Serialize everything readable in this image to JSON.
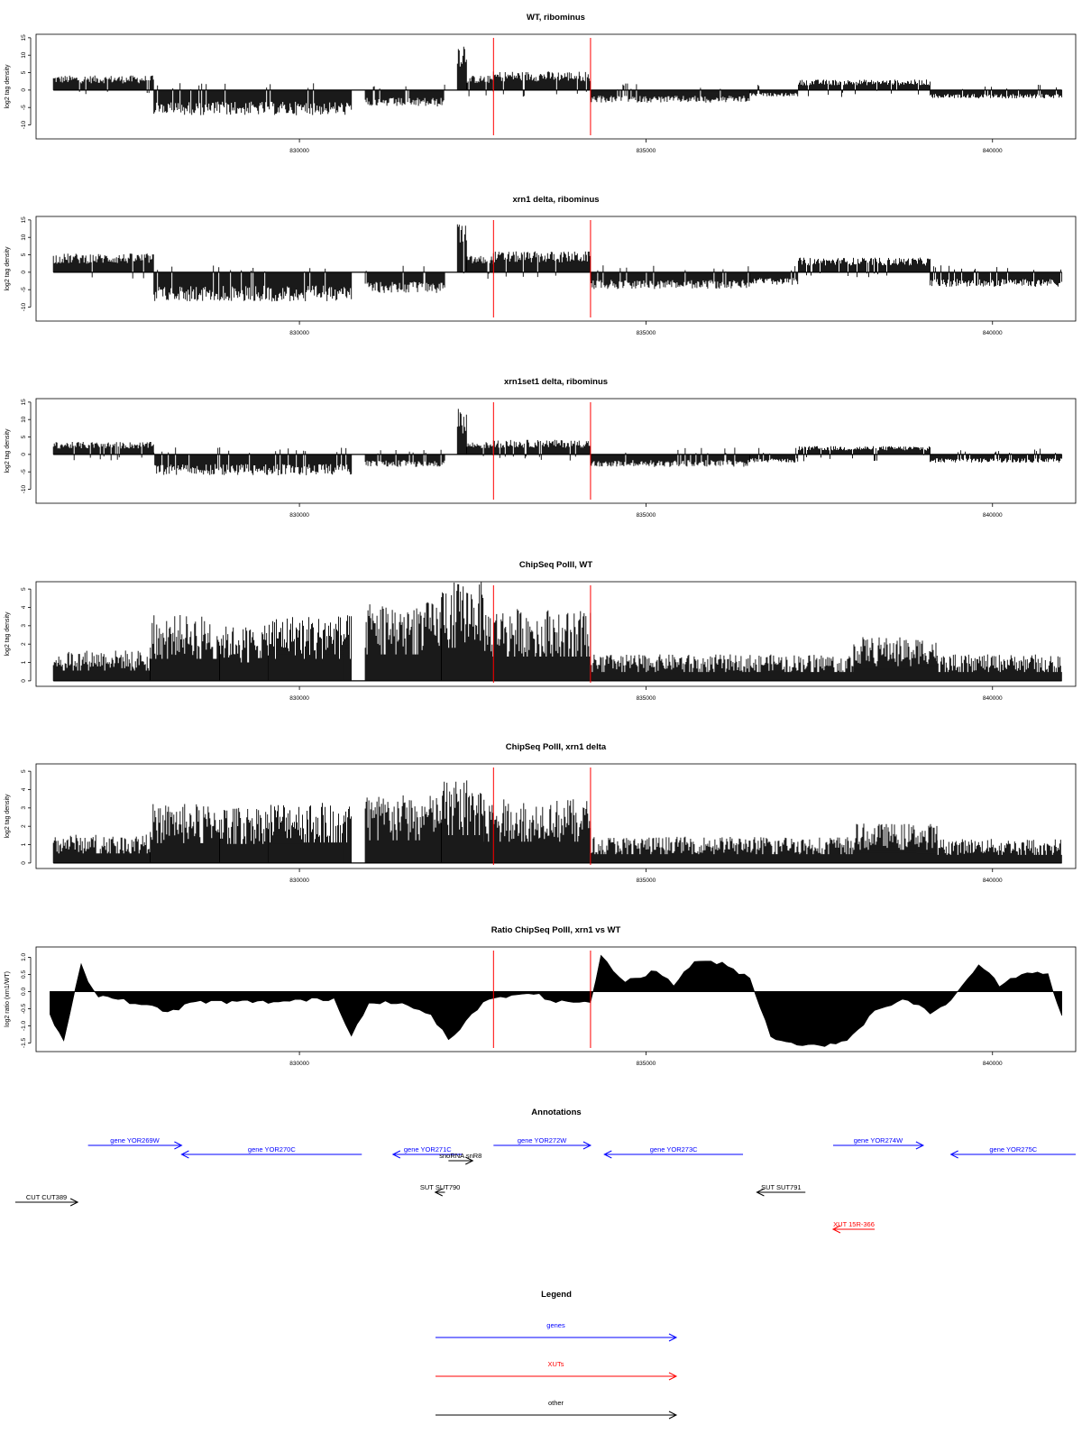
{
  "chart_data": [
    {
      "type": "bar",
      "title": "WT, ribominus",
      "ylabel": "log2 tag density",
      "xlim": [
        826200,
        841200
      ],
      "ylim": [
        -14,
        16
      ],
      "yticks": [
        "-10",
        "-5",
        "0",
        "5",
        "10",
        "15"
      ],
      "yticks_values": [
        -10,
        -5,
        0,
        5,
        10,
        15
      ],
      "xticks": [
        "830000",
        "835000",
        "840000"
      ],
      "xticks_values": [
        830000,
        835000,
        840000
      ],
      "markers": [
        832800,
        834200
      ],
      "segments": [
        {
          "start": 826450,
          "end": 827900,
          "level": 3.5
        },
        {
          "start": 827900,
          "end": 830750,
          "level": -6
        },
        {
          "start": 830950,
          "end": 832100,
          "level": -4
        },
        {
          "start": 832280,
          "end": 832420,
          "level": 12
        },
        {
          "start": 832420,
          "end": 832800,
          "level": 3.5
        },
        {
          "start": 832800,
          "end": 834200,
          "level": 4.5
        },
        {
          "start": 834200,
          "end": 836500,
          "level": -3
        },
        {
          "start": 836500,
          "end": 837200,
          "level": -1.5
        },
        {
          "start": 837200,
          "end": 839100,
          "level": 2.5
        },
        {
          "start": 839100,
          "end": 841000,
          "level": -2
        }
      ]
    },
    {
      "type": "bar",
      "title": "xrn1 delta, ribominus",
      "ylabel": "log2 tag density",
      "xlim": [
        826200,
        841200
      ],
      "ylim": [
        -14,
        16
      ],
      "yticks": [
        "-10",
        "-5",
        "0",
        "5",
        "10",
        "15"
      ],
      "yticks_values": [
        -10,
        -5,
        0,
        5,
        10,
        15
      ],
      "xticks": [
        "830000",
        "835000",
        "840000"
      ],
      "xticks_values": [
        830000,
        835000,
        840000
      ],
      "markers": [
        832800,
        834200
      ],
      "segments": [
        {
          "start": 826450,
          "end": 827900,
          "level": 4.5
        },
        {
          "start": 827900,
          "end": 830750,
          "level": -7
        },
        {
          "start": 830950,
          "end": 832100,
          "level": -5
        },
        {
          "start": 832280,
          "end": 832420,
          "level": 12
        },
        {
          "start": 832420,
          "end": 832800,
          "level": 4
        },
        {
          "start": 832800,
          "end": 834200,
          "level": 5
        },
        {
          "start": 834200,
          "end": 836500,
          "level": -4
        },
        {
          "start": 836500,
          "end": 837200,
          "level": -3
        },
        {
          "start": 837200,
          "end": 839100,
          "level": 3.5
        },
        {
          "start": 839100,
          "end": 841000,
          "level": -3.5
        }
      ]
    },
    {
      "type": "bar",
      "title": "xrn1set1 delta, ribominus",
      "ylabel": "log2 tag density",
      "xlim": [
        826200,
        841200
      ],
      "ylim": [
        -14,
        16
      ],
      "yticks": [
        "-10",
        "-5",
        "0",
        "5",
        "10",
        "15"
      ],
      "yticks_values": [
        -10,
        -5,
        0,
        5,
        10,
        15
      ],
      "xticks": [
        "830000",
        "835000",
        "840000"
      ],
      "xticks_values": [
        830000,
        835000,
        840000
      ],
      "markers": [
        832800,
        834200
      ],
      "segments": [
        {
          "start": 826450,
          "end": 827900,
          "level": 3
        },
        {
          "start": 827900,
          "end": 830750,
          "level": -5
        },
        {
          "start": 830950,
          "end": 832100,
          "level": -3
        },
        {
          "start": 832280,
          "end": 832420,
          "level": 11
        },
        {
          "start": 832420,
          "end": 832800,
          "level": 3
        },
        {
          "start": 832800,
          "end": 834200,
          "level": 3.5
        },
        {
          "start": 834200,
          "end": 836500,
          "level": -3
        },
        {
          "start": 836500,
          "end": 837200,
          "level": -2
        },
        {
          "start": 837200,
          "end": 839100,
          "level": 2
        },
        {
          "start": 839100,
          "end": 841000,
          "level": -2
        }
      ]
    },
    {
      "type": "bar",
      "title": "ChipSeq PolII, WT",
      "ylabel": "log2 tag density",
      "xlim": [
        826200,
        841200
      ],
      "ylim": [
        -0.3,
        5.4
      ],
      "yticks": [
        "0",
        "1",
        "2",
        "3",
        "4",
        "5"
      ],
      "yticks_values": [
        0,
        1,
        2,
        3,
        4,
        5
      ],
      "xticks": [
        "830000",
        "835000",
        "840000"
      ],
      "xticks_values": [
        830000,
        835000,
        840000
      ],
      "markers": [
        832800,
        834200
      ],
      "segments": [
        {
          "start": 826450,
          "end": 827850,
          "level": 1.4
        },
        {
          "start": 827850,
          "end": 828850,
          "level": 3.0
        },
        {
          "start": 828850,
          "end": 829550,
          "level": 2.5
        },
        {
          "start": 829550,
          "end": 830750,
          "level": 3.0
        },
        {
          "start": 830950,
          "end": 832050,
          "level": 3.6
        },
        {
          "start": 832050,
          "end": 832650,
          "level": 4.5
        },
        {
          "start": 832650,
          "end": 834200,
          "level": 3.3
        },
        {
          "start": 834200,
          "end": 838000,
          "level": 1.2
        },
        {
          "start": 838000,
          "end": 839200,
          "level": 2.0
        },
        {
          "start": 839200,
          "end": 841000,
          "level": 1.2
        }
      ]
    },
    {
      "type": "bar",
      "title": "ChipSeq PolII, xrn1 delta",
      "ylabel": "log2 tag density",
      "xlim": [
        826200,
        841200
      ],
      "ylim": [
        -0.3,
        5.4
      ],
      "yticks": [
        "0",
        "1",
        "2",
        "3",
        "4",
        "5"
      ],
      "yticks_values": [
        0,
        1,
        2,
        3,
        4,
        5
      ],
      "xticks": [
        "830000",
        "835000",
        "840000"
      ],
      "xticks_values": [
        830000,
        835000,
        840000
      ],
      "markers": [
        832800,
        834200
      ],
      "segments": [
        {
          "start": 826450,
          "end": 827850,
          "level": 1.3
        },
        {
          "start": 827850,
          "end": 828850,
          "level": 2.7
        },
        {
          "start": 828850,
          "end": 829550,
          "level": 2.6
        },
        {
          "start": 829550,
          "end": 830750,
          "level": 2.8
        },
        {
          "start": 830950,
          "end": 832050,
          "level": 3.1
        },
        {
          "start": 832050,
          "end": 832650,
          "level": 3.8
        },
        {
          "start": 832650,
          "end": 834200,
          "level": 2.9
        },
        {
          "start": 834200,
          "end": 838000,
          "level": 1.2
        },
        {
          "start": 838000,
          "end": 839200,
          "level": 1.8
        },
        {
          "start": 839200,
          "end": 841000,
          "level": 1.1
        }
      ]
    },
    {
      "type": "area",
      "title": "Ratio ChipSeq PolII, xrn1 vs WT",
      "ylabel": "log2 ratio (xrn1/WT)",
      "xlim": [
        826200,
        841200
      ],
      "ylim": [
        -1.75,
        1.3
      ],
      "yticks": [
        "-1.5",
        "-1.0",
        "-0.5",
        "0.0",
        "0.5",
        "1.0"
      ],
      "yticks_values": [
        -1.5,
        -1.0,
        -0.5,
        0.0,
        0.5,
        1.0
      ],
      "xticks": [
        "830000",
        "835000",
        "840000"
      ],
      "xticks_values": [
        830000,
        835000,
        840000
      ],
      "markers": [
        832800,
        834200
      ],
      "x": [
        826400,
        826600,
        826850,
        826950,
        827100,
        827300,
        827800,
        828100,
        828500,
        829100,
        829700,
        830500,
        830750,
        831000,
        831400,
        831900,
        832150,
        832400,
        832650,
        832900,
        833300,
        833700,
        834200,
        834350,
        834700,
        835150,
        835400,
        835700,
        836100,
        836500,
        836800,
        837100,
        837500,
        837900,
        838300,
        838700,
        839100,
        839400,
        839800,
        840100,
        840500,
        840800,
        841000
      ],
      "y": [
        -0.7,
        -1.4,
        0.8,
        0.3,
        -0.1,
        -0.2,
        -0.4,
        -0.6,
        -0.3,
        -0.3,
        -0.3,
        -0.2,
        -1.3,
        -0.3,
        -0.3,
        -0.7,
        -1.4,
        -0.9,
        -0.3,
        -0.2,
        0.0,
        -0.3,
        -0.3,
        1.0,
        0.3,
        0.6,
        0.2,
        0.9,
        0.8,
        0.4,
        -1.3,
        -1.5,
        -1.6,
        -1.4,
        -0.6,
        -0.2,
        -0.6,
        -0.3,
        0.8,
        0.2,
        0.6,
        0.5,
        -0.7
      ]
    }
  ],
  "annotations": {
    "title": "Annotations",
    "items": [
      {
        "label": "gene YOR269W",
        "start": 826950,
        "end": 828300,
        "row": 0,
        "dir": "right",
        "color": "#0000ff"
      },
      {
        "label": "gene YOR270C",
        "start": 828300,
        "end": 830900,
        "row": 1,
        "dir": "left",
        "color": "#0000ff"
      },
      {
        "label": "gene YOR271C",
        "start": 831350,
        "end": 832350,
        "row": 1,
        "dir": "left",
        "color": "#0000ff"
      },
      {
        "label": "gene YOR272W",
        "start": 832800,
        "end": 834200,
        "row": 0,
        "dir": "right",
        "color": "#0000ff"
      },
      {
        "label": "gene YOR273C",
        "start": 834400,
        "end": 836400,
        "row": 1,
        "dir": "left",
        "color": "#0000ff"
      },
      {
        "label": "gene YOR274W",
        "start": 837700,
        "end": 839000,
        "row": 0,
        "dir": "right",
        "color": "#0000ff"
      },
      {
        "label": "gene YOR275C",
        "start": 839400,
        "end": 841200,
        "row": 1,
        "dir": "left",
        "color": "#0000ff"
      },
      {
        "label": "snoRNA snR8",
        "start": 832150,
        "end": 832500,
        "row": 2,
        "dir": "right",
        "color": "#000000"
      },
      {
        "label": "SUT SUT790",
        "start": 831960,
        "end": 832100,
        "row": 3,
        "dir": "left",
        "color": "#000000"
      },
      {
        "label": "SUT SUT791",
        "start": 836600,
        "end": 837300,
        "row": 3,
        "dir": "left",
        "color": "#000000"
      },
      {
        "label": "CUT CUT389",
        "start": 825900,
        "end": 826800,
        "row": 4,
        "dir": "right",
        "color": "#000000"
      },
      {
        "label": "XUT 15R-366",
        "start": 837700,
        "end": 838300,
        "row": 5,
        "dir": "left",
        "color": "#ff0000"
      }
    ]
  },
  "legend": {
    "title": "Legend",
    "items": [
      {
        "label": "genes",
        "color": "#0000ff"
      },
      {
        "label": "XUTs",
        "color": "#ff0000"
      },
      {
        "label": "other",
        "color": "#000000"
      }
    ]
  }
}
